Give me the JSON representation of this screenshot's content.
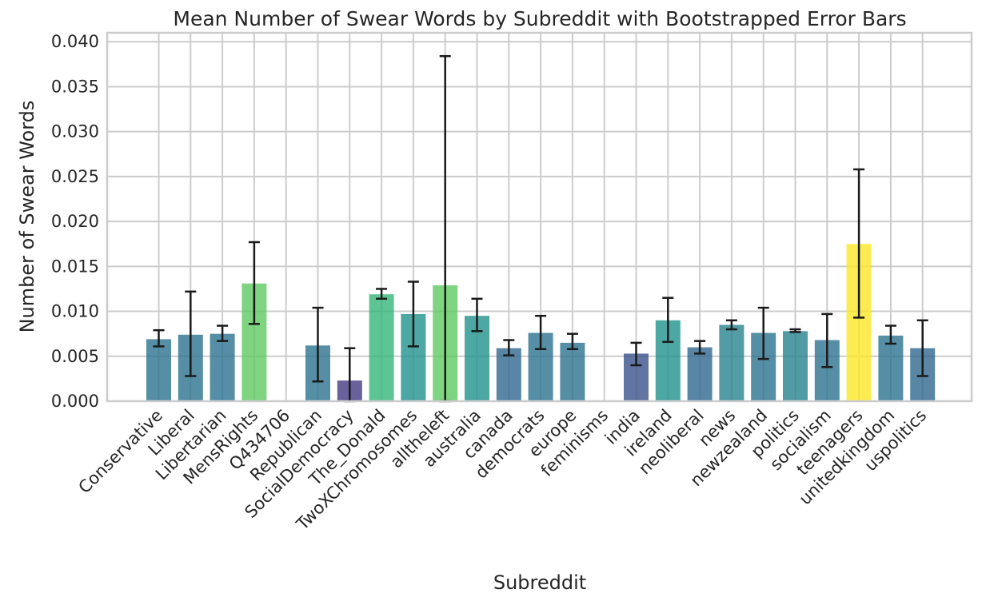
{
  "chart_data": {
    "type": "bar",
    "title": "Mean Number of Swear Words by Subreddit with Bootstrapped Error Bars",
    "xlabel": "Subreddit",
    "ylabel": "Number of Swear Words",
    "ylim": [
      0,
      0.041
    ],
    "yticks": [
      "0.000",
      "0.005",
      "0.010",
      "0.015",
      "0.020",
      "0.025",
      "0.030",
      "0.035",
      "0.040"
    ],
    "grid": true,
    "categories": [
      "Conservative",
      "Liberal",
      "Libertarian",
      "MensRights",
      "Q434706",
      "Republican",
      "SocialDemocracy",
      "The_Donald",
      "TwoXChromosomes",
      "alltheleft",
      "australia",
      "canada",
      "democrats",
      "europe",
      "feminisms",
      "india",
      "ireland",
      "neoliberal",
      "news",
      "newzealand",
      "politics",
      "socialism",
      "teenagers",
      "unitedkingdom",
      "uspolitics"
    ],
    "values": [
      0.0069,
      0.0074,
      0.0075,
      0.0131,
      0.0,
      0.0062,
      0.0023,
      0.0119,
      0.0097,
      0.0129,
      0.0095,
      0.0059,
      0.0076,
      0.0065,
      0.0,
      0.0053,
      0.009,
      0.006,
      0.0085,
      0.0076,
      0.0078,
      0.0068,
      0.0175,
      0.0073,
      0.0059
    ],
    "err_low": [
      0.0061,
      0.0028,
      0.0067,
      0.0086,
      null,
      0.0022,
      0.0,
      0.0114,
      0.0061,
      0.0,
      0.0078,
      0.0051,
      0.0058,
      0.0058,
      null,
      0.004,
      0.0066,
      0.0053,
      0.008,
      0.0047,
      0.0077,
      0.0038,
      0.0093,
      0.0064,
      0.0028
    ],
    "err_high": [
      0.0079,
      0.0122,
      0.0084,
      0.0177,
      null,
      0.0104,
      0.0059,
      0.0125,
      0.0133,
      0.0384,
      0.0114,
      0.0068,
      0.0095,
      0.0075,
      null,
      0.0065,
      0.0115,
      0.0067,
      0.009,
      0.0104,
      0.008,
      0.0097,
      0.0258,
      0.0084,
      0.009
    ],
    "colors": [
      "#2c728e",
      "#2c728e",
      "#2c728e",
      "#5ec962",
      "#440154",
      "#2c728e",
      "#443983",
      "#35b779",
      "#21918c",
      "#5ec962",
      "#21918c",
      "#31688e",
      "#2c728e",
      "#2c728e",
      "#440154",
      "#3b528b",
      "#21918c",
      "#31688e",
      "#28828e",
      "#2c728e",
      "#26828e",
      "#2c728e",
      "#fde725",
      "#2c728e",
      "#31688e"
    ]
  }
}
